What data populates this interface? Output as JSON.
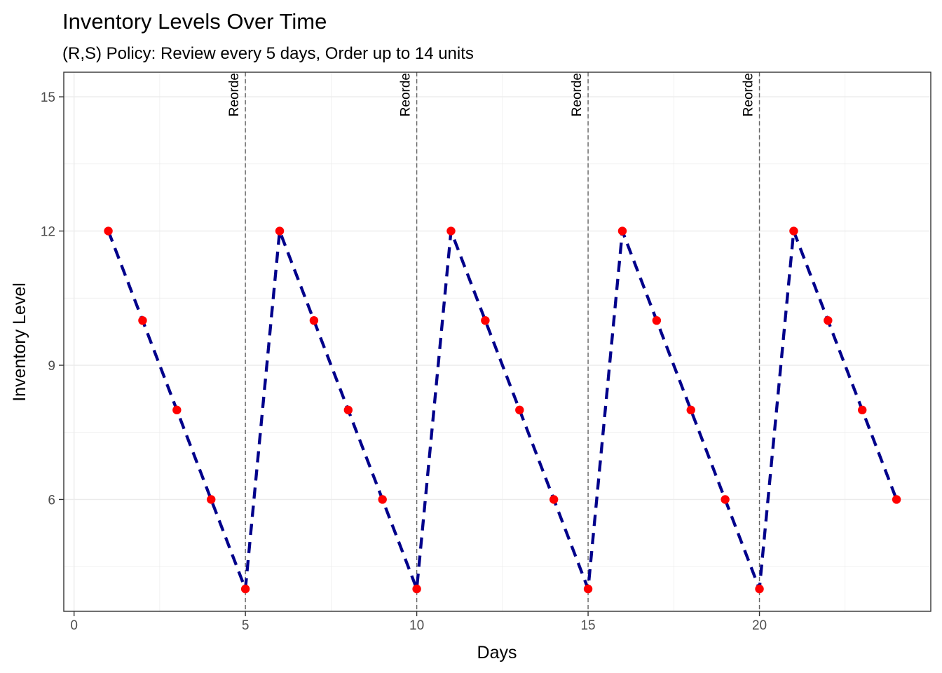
{
  "chart_data": {
    "type": "line",
    "title": "Inventory Levels Over Time",
    "subtitle": "(R,S) Policy: Review every 5 days, Order up to 14 units",
    "xlabel": "Days",
    "ylabel": "Inventory Level",
    "xlim": [
      -0.3,
      25.0
    ],
    "ylim": [
      3.5,
      15.55
    ],
    "x_ticks": [
      0,
      5,
      10,
      15,
      20
    ],
    "x_minor_ticks": [
      2.5,
      7.5,
      12.5,
      17.5,
      22.5
    ],
    "y_ticks": [
      6,
      9,
      12,
      15
    ],
    "y_minor_ticks": [
      4.5,
      7.5,
      10.5,
      13.5
    ],
    "grid": true,
    "x": [
      1,
      2,
      3,
      4,
      5,
      6,
      7,
      8,
      9,
      10,
      11,
      12,
      13,
      14,
      15,
      16,
      17,
      18,
      19,
      20,
      21,
      22,
      23,
      24
    ],
    "y": [
      12,
      10,
      8,
      6,
      4,
      12,
      10,
      8,
      6,
      4,
      12,
      10,
      8,
      6,
      4,
      12,
      10,
      8,
      6,
      4,
      12,
      10,
      8,
      6
    ],
    "line_color": "#00008B",
    "point_color": "#FF0000",
    "reorder_days": [
      5,
      10,
      15,
      20
    ],
    "reorder_label": "Reorde",
    "reorder_line_color": "#666666"
  }
}
